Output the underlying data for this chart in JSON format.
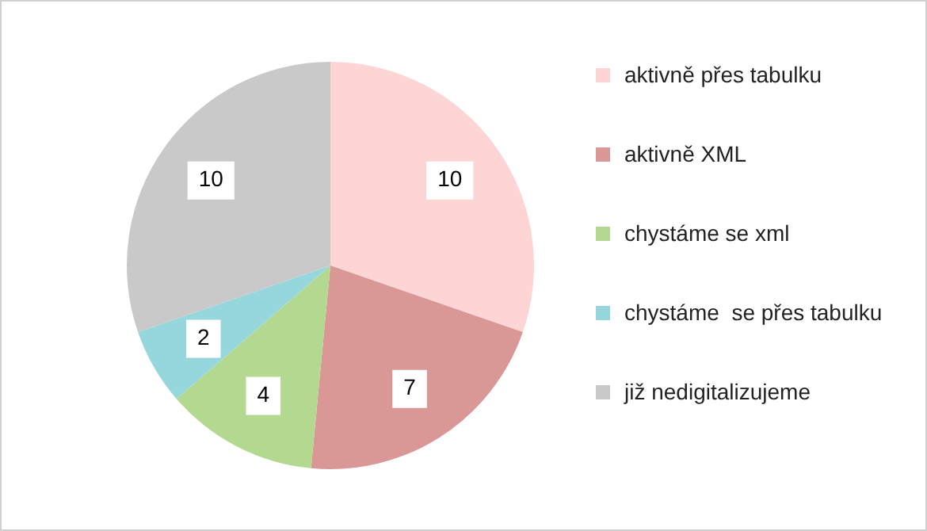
{
  "chart_data": {
    "type": "pie",
    "categories": [
      "aktivně přes tabulku",
      "aktivně XML",
      "chystáme se xml",
      "chystáme  se přes tabulku",
      "již nedigitalizujeme"
    ],
    "values": [
      10,
      7,
      4,
      2,
      10
    ],
    "colors": [
      "#fcd5d4",
      "#d99795",
      "#b3d88f",
      "#96d6dd",
      "#c9c9c9"
    ],
    "data_labels": true,
    "legend": "right"
  }
}
